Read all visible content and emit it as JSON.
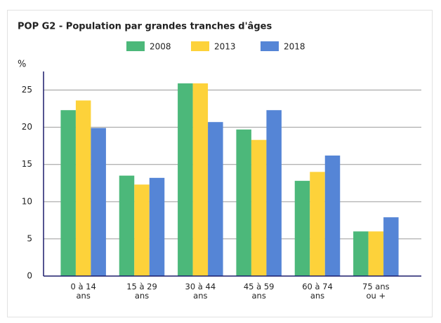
{
  "chart_data": {
    "type": "bar",
    "title": "POP G2 - Population par grandes tranches d'âges",
    "y_label": "%",
    "categories": [
      "0 à 14 ans",
      "15 à 29 ans",
      "30 à 44 ans",
      "45 à 59 ans",
      "60 à 74 ans",
      "75 ans ou +"
    ],
    "series": [
      {
        "name": "2008",
        "color": "#4cb87a",
        "values": [
          22.3,
          13.5,
          25.9,
          19.7,
          12.8,
          6.0
        ]
      },
      {
        "name": "2013",
        "color": "#fdd23a",
        "values": [
          23.6,
          12.3,
          25.9,
          18.3,
          14.0,
          6.0
        ]
      },
      {
        "name": "2018",
        "color": "#5585d6",
        "values": [
          19.9,
          13.2,
          20.7,
          22.3,
          16.2,
          7.9
        ]
      }
    ],
    "ylim": [
      0,
      27.5
    ],
    "yticks": [
      0,
      5,
      10,
      15,
      20,
      25
    ],
    "grid": true,
    "legend": "top"
  }
}
